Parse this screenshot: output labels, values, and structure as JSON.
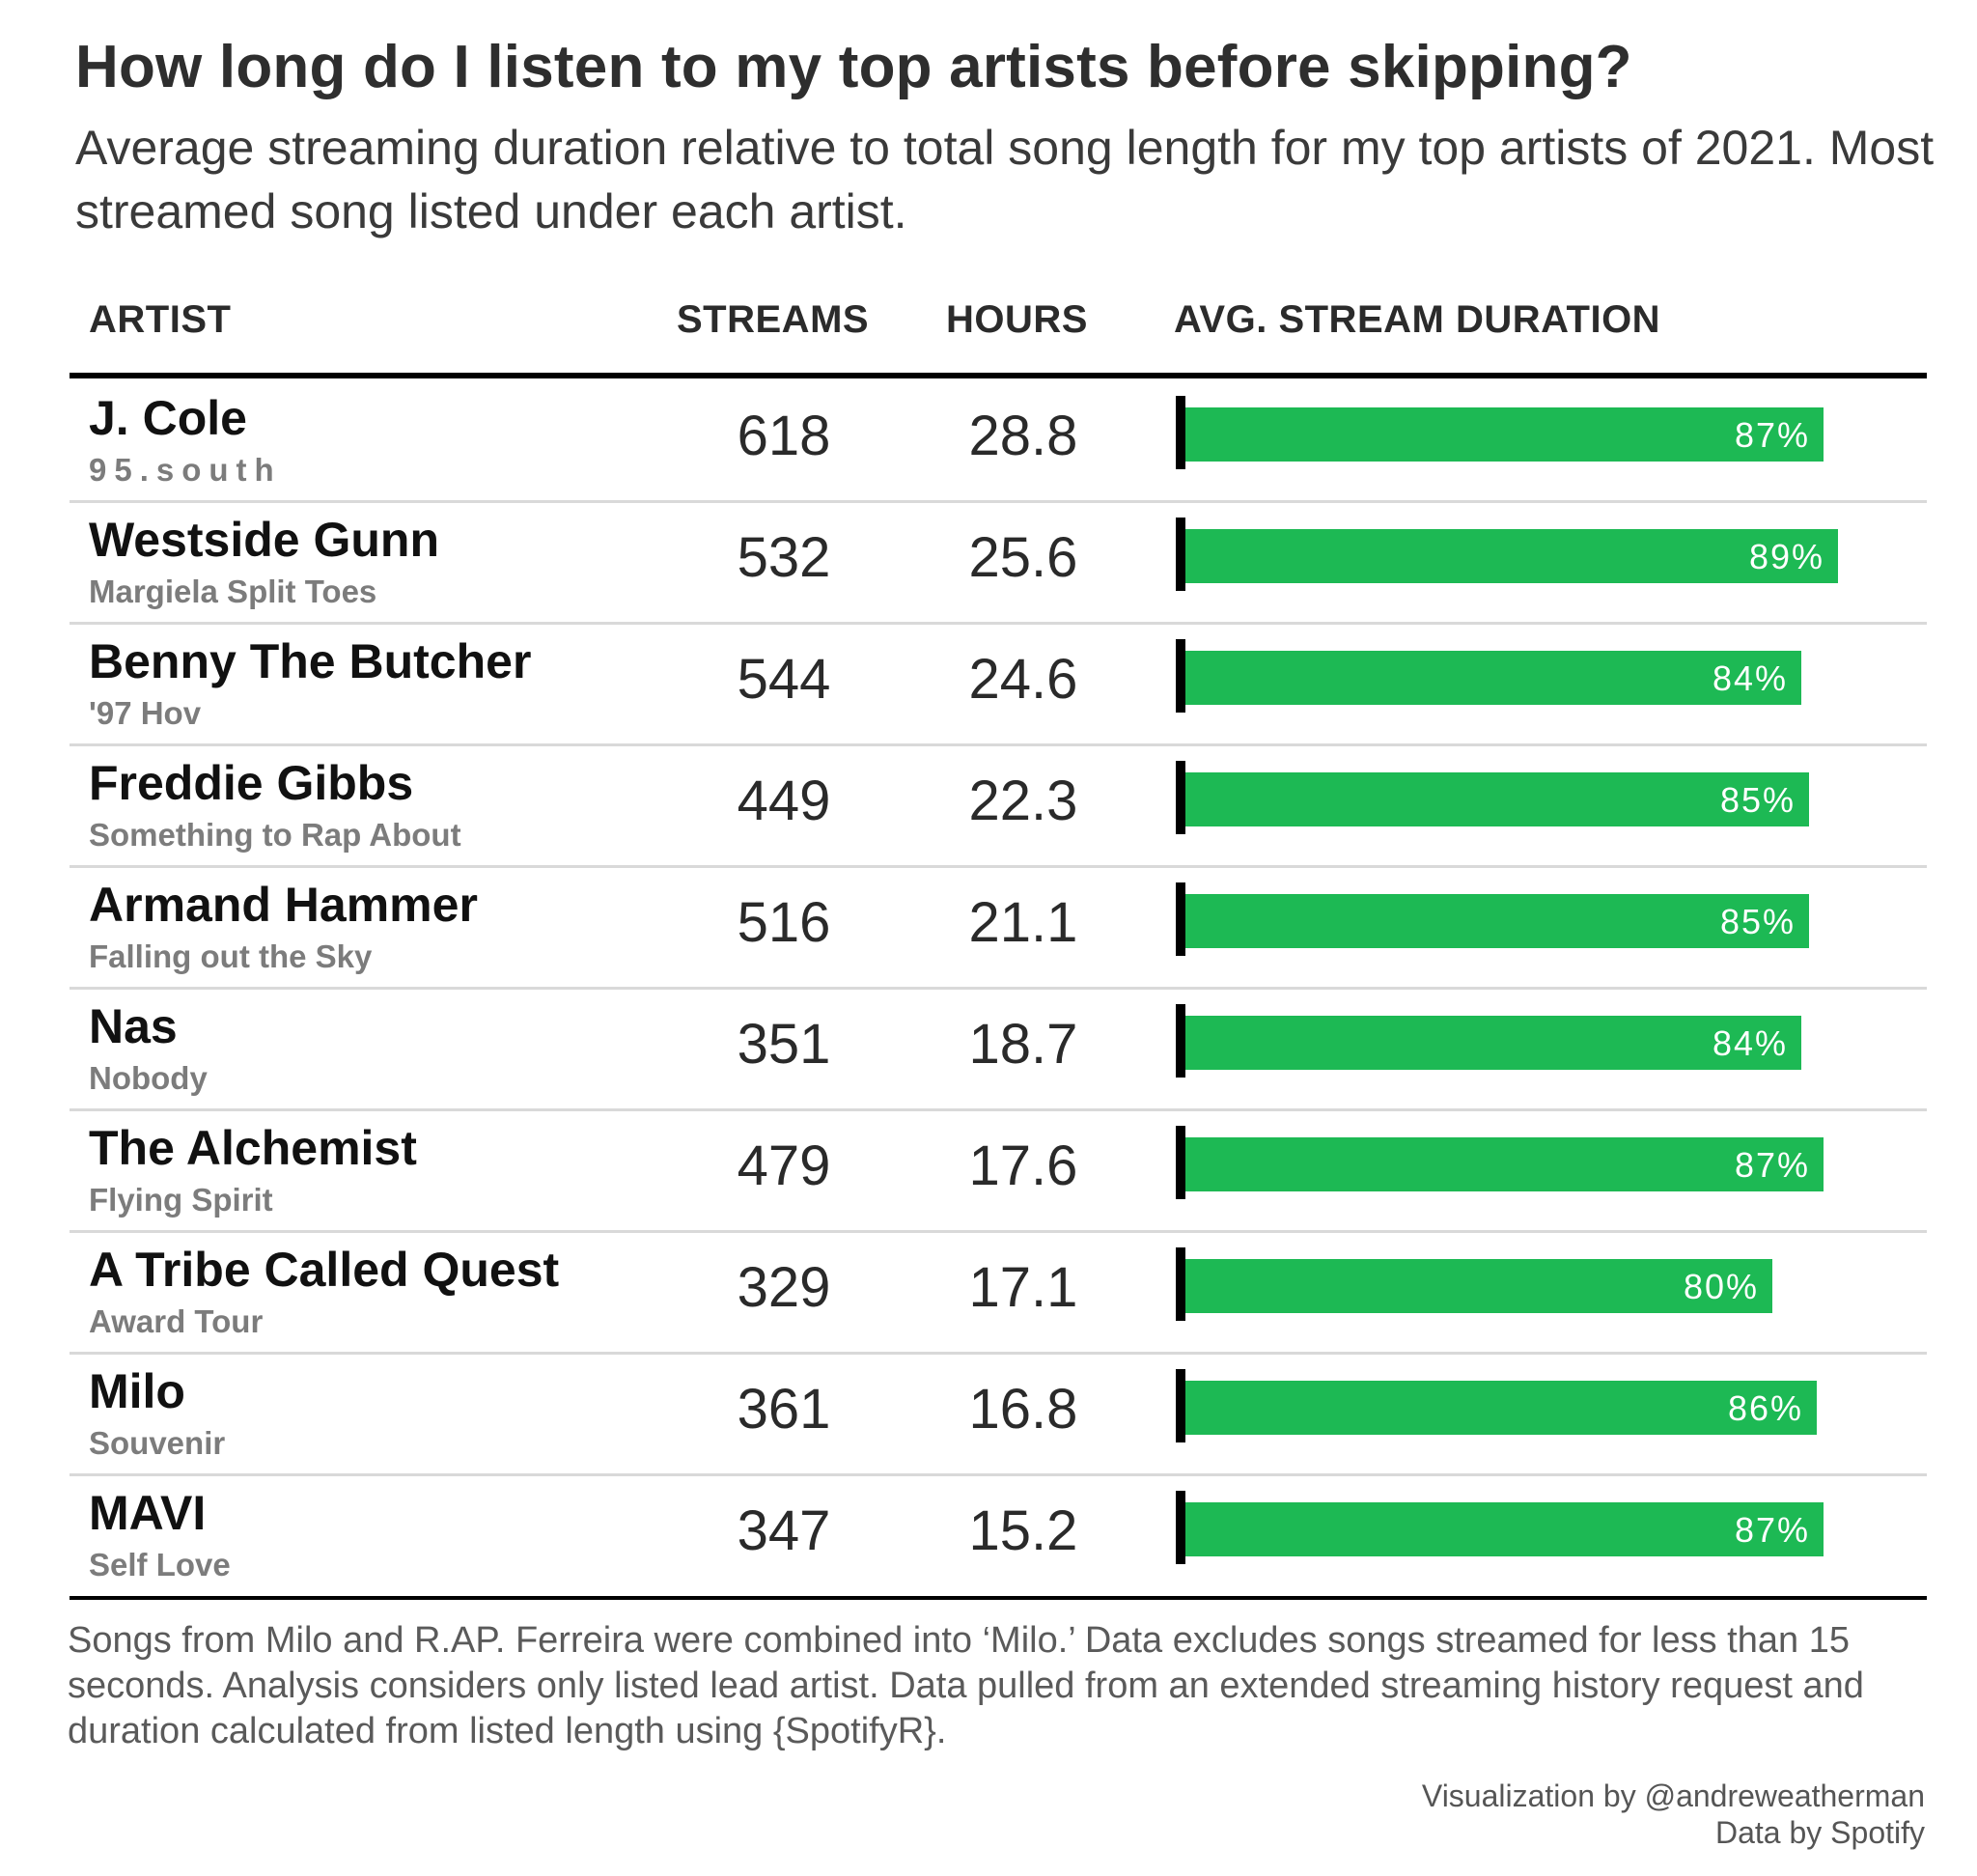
{
  "header": {
    "title": "How long do I listen to my top artists before skipping?",
    "subtitle": "Average streaming duration relative to total song length for my top artists of 2021. Most streamed song listed under each artist."
  },
  "columns": {
    "artist": "ARTIST",
    "streams": "STREAMS",
    "hours": "HOURS",
    "duration": "AVG. STREAM DURATION"
  },
  "chart_data": {
    "type": "table",
    "bar_color": "#1db954",
    "bar_unit": "%",
    "rows": [
      {
        "artist": "J. Cole",
        "song": "95.south",
        "streams": "618",
        "hours": "28.8",
        "duration": 87
      },
      {
        "artist": "Westside Gunn",
        "song": "Margiela Split Toes",
        "streams": "532",
        "hours": "25.6",
        "duration": 89
      },
      {
        "artist": "Benny The Butcher",
        "song": "'97 Hov",
        "streams": "544",
        "hours": "24.6",
        "duration": 84
      },
      {
        "artist": "Freddie Gibbs",
        "song": "Something to Rap About",
        "streams": "449",
        "hours": "22.3",
        "duration": 85
      },
      {
        "artist": "Armand Hammer",
        "song": "Falling out the Sky",
        "streams": "516",
        "hours": "21.1",
        "duration": 85
      },
      {
        "artist": "Nas",
        "song": "Nobody",
        "streams": "351",
        "hours": "18.7",
        "duration": 84
      },
      {
        "artist": "The Alchemist",
        "song": "Flying Spirit",
        "streams": "479",
        "hours": "17.6",
        "duration": 87
      },
      {
        "artist": "A Tribe Called Quest",
        "song": "Award Tour",
        "streams": "329",
        "hours": "17.1",
        "duration": 80
      },
      {
        "artist": "Milo",
        "song": "Souvenir",
        "streams": "361",
        "hours": "16.8",
        "duration": 86
      },
      {
        "artist": "MAVI",
        "song": "Self Love",
        "streams": "347",
        "hours": "15.2",
        "duration": 87
      }
    ]
  },
  "footer": {
    "note": "Songs from Milo and R.AP. Ferreira were combined into ‘Milo.’ Data excludes songs streamed for less than 15 seconds. Analysis considers only listed lead artist. Data pulled from an extended streaming history request and duration calculated from listed length using {SpotifyR}.",
    "credit_viz": "Visualization by @andreweatherman",
    "credit_data": "Data by Spotify"
  }
}
